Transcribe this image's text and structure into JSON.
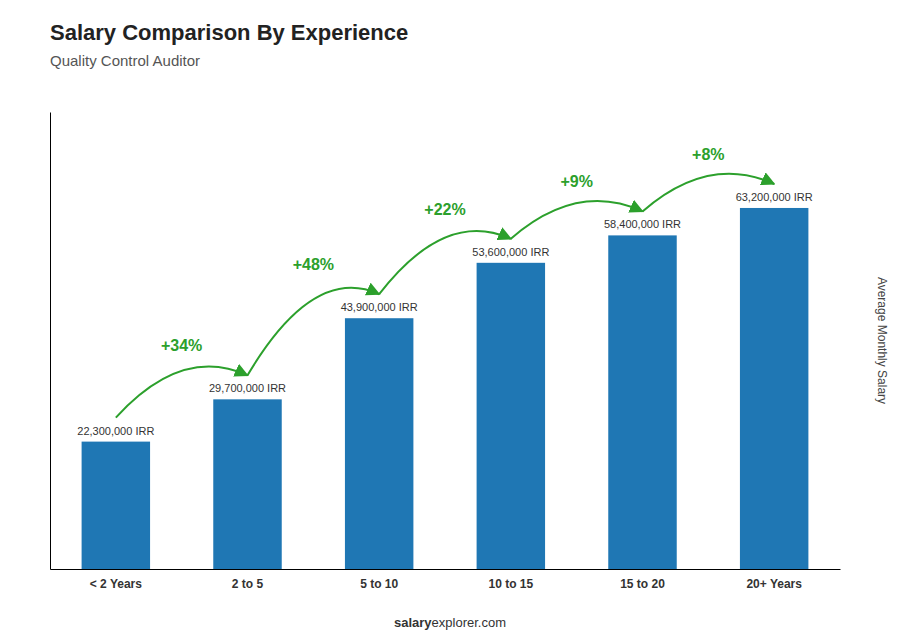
{
  "chart_data": {
    "type": "bar",
    "title": "Salary Comparison By Experience",
    "subtitle": "Quality Control Auditor",
    "categories": [
      "< 2 Years",
      "2 to 5",
      "5 to 10",
      "10 to 15",
      "15 to 20",
      "20+ Years"
    ],
    "values": [
      22300000,
      29700000,
      43900000,
      53600000,
      58400000,
      63200000
    ],
    "value_labels": [
      "22,300,000 IRR",
      "29,700,000 IRR",
      "43,900,000 IRR",
      "53,600,000 IRR",
      "58,400,000 IRR",
      "63,200,000 IRR"
    ],
    "annotations": [
      "+34%",
      "+48%",
      "+22%",
      "+9%",
      "+8%"
    ],
    "ylabel": "Average Monthly Salary",
    "footer": [
      "salary",
      "explorer.com"
    ],
    "ylim": [
      0,
      80000000
    ],
    "yticks": [],
    "tick_labels": "x",
    "grid": false
  }
}
